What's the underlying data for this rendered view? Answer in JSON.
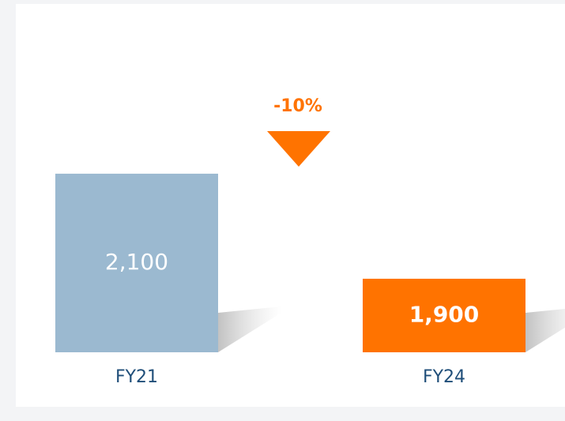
{
  "chart_data": {
    "type": "bar",
    "categories": [
      "FY21",
      "FY24"
    ],
    "values": [
      2100,
      1900
    ],
    "value_labels": [
      "2,100",
      "1,900"
    ],
    "colors": [
      "#9bb9d0",
      "#ff7300"
    ],
    "annotation": "-10%",
    "ylim": [
      1760,
      2200
    ]
  }
}
